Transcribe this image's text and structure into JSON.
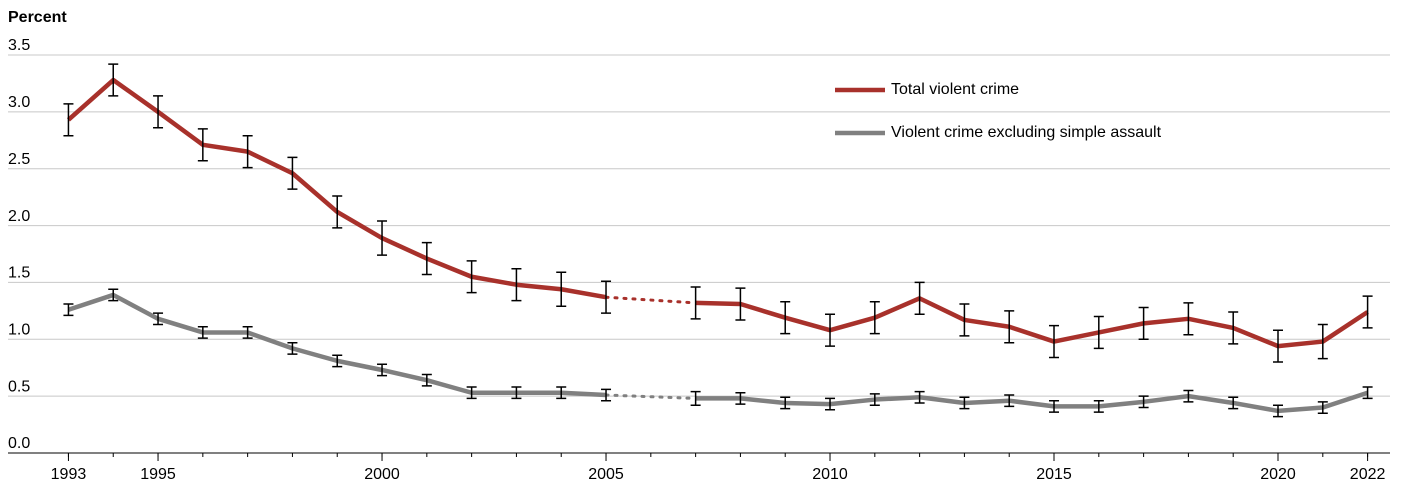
{
  "chart_data": {
    "type": "line",
    "y_label": "Percent",
    "x": [
      1993,
      1994,
      1995,
      1996,
      1997,
      1998,
      1999,
      2000,
      2001,
      2002,
      2003,
      2004,
      2005,
      2006,
      2007,
      2008,
      2009,
      2010,
      2011,
      2012,
      2013,
      2014,
      2015,
      2016,
      2017,
      2018,
      2019,
      2020,
      2021,
      2022
    ],
    "series": [
      {
        "name": "Total violent crime",
        "color": "#a8312b",
        "values": [
          2.93,
          3.28,
          3.0,
          2.71,
          2.65,
          2.46,
          2.12,
          1.89,
          1.71,
          1.55,
          1.48,
          1.44,
          1.37,
          null,
          1.32,
          1.31,
          1.19,
          1.08,
          1.19,
          1.36,
          1.17,
          1.11,
          0.98,
          1.06,
          1.14,
          1.18,
          1.1,
          0.94,
          0.98,
          1.24
        ],
        "errors": [
          0.14,
          0.14,
          0.14,
          0.14,
          0.14,
          0.14,
          0.14,
          0.15,
          0.14,
          0.14,
          0.14,
          0.15,
          0.14,
          null,
          0.14,
          0.14,
          0.14,
          0.14,
          0.14,
          0.14,
          0.14,
          0.14,
          0.14,
          0.14,
          0.14,
          0.14,
          0.14,
          0.14,
          0.15,
          0.14
        ]
      },
      {
        "name": "Violent crime excluding simple assault",
        "color": "#808080",
        "values": [
          1.26,
          1.39,
          1.18,
          1.06,
          1.06,
          0.92,
          0.81,
          0.73,
          0.64,
          0.53,
          0.53,
          0.53,
          0.51,
          null,
          0.48,
          0.48,
          0.44,
          0.43,
          0.47,
          0.49,
          0.44,
          0.46,
          0.41,
          0.41,
          0.45,
          0.5,
          0.44,
          0.37,
          0.4,
          0.53
        ],
        "errors": [
          0.05,
          0.05,
          0.05,
          0.05,
          0.05,
          0.05,
          0.05,
          0.05,
          0.05,
          0.05,
          0.05,
          0.05,
          0.05,
          null,
          0.06,
          0.05,
          0.05,
          0.05,
          0.05,
          0.05,
          0.05,
          0.05,
          0.05,
          0.05,
          0.05,
          0.05,
          0.05,
          0.05,
          0.05,
          0.05
        ]
      }
    ],
    "xlim": [
      1992.7,
      2022.5
    ],
    "xticks": [
      1993,
      1995,
      2000,
      2005,
      2010,
      2015,
      2020,
      2022
    ],
    "ylim": [
      0,
      3.5
    ],
    "yticks": [
      {
        "value": 0,
        "label": "0.0"
      },
      0.5,
      {
        "value": 1,
        "label": "1.0"
      },
      1.5,
      {
        "value": 2,
        "label": "2.0"
      },
      2.5,
      {
        "value": 3,
        "label": "3.0"
      },
      3.5
    ],
    "grid": true,
    "legend": "upper right"
  }
}
